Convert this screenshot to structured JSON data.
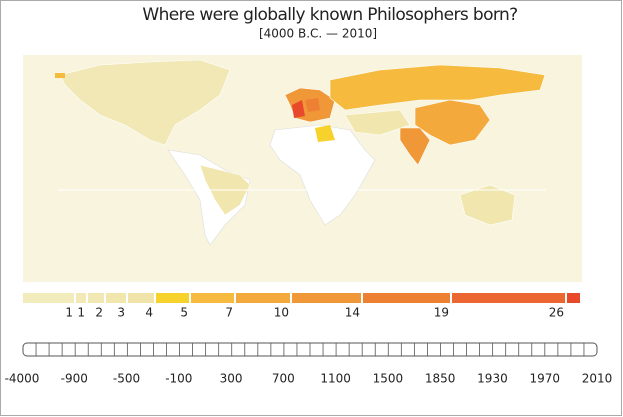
{
  "header": {
    "title": "Where were globally known Philosophers born?",
    "subtitle": "[4000 B.C. — 2010]"
  },
  "legend": {
    "labels": [
      "1",
      "1",
      "2",
      "3",
      "4",
      "5",
      "7",
      "10",
      "14",
      "19",
      "26"
    ],
    "colors": [
      "#f2ebbc",
      "#f2e9b6",
      "#f2e8b4",
      "#f1e6ae",
      "#f1e4aa",
      "#f7d22c",
      "#f5ba3e",
      "#f3a93b",
      "#f09737",
      "#ee8034",
      "#ec6631",
      "#e8492b"
    ]
  },
  "timeline": {
    "labels": [
      "-4000",
      "-900",
      "-500",
      "-100",
      "300",
      "700",
      "1100",
      "1500",
      "1850",
      "1930",
      "1970",
      "2010"
    ]
  }
}
